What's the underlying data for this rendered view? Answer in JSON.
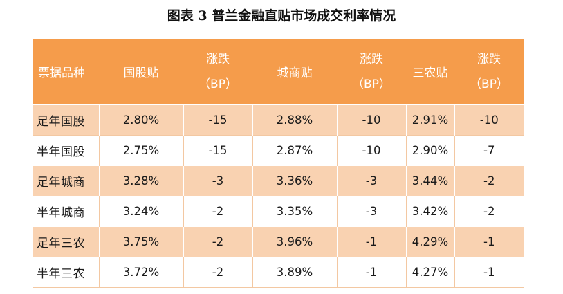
{
  "title": "图表 3  普兰金融直贴市场成交利率情况",
  "table": {
    "headers": [
      {
        "line1": "票据品种",
        "line2": ""
      },
      {
        "line1": "国股贴",
        "line2": ""
      },
      {
        "line1": "涨跌",
        "line2": "（BP）"
      },
      {
        "line1": "城商贴",
        "line2": ""
      },
      {
        "line1": "涨跌",
        "line2": "（BP）"
      },
      {
        "line1": "三农贴",
        "line2": ""
      },
      {
        "line1": "涨跌",
        "line2": "（BP）"
      }
    ],
    "rows": [
      [
        "足年国股",
        "2.80%",
        "-15",
        "2.88%",
        "-10",
        "2.91%",
        "-10"
      ],
      [
        "半年国股",
        "2.75%",
        "-15",
        "2.87%",
        "-10",
        "2.90%",
        "-7"
      ],
      [
        "足年城商",
        "3.28%",
        "-3",
        "3.36%",
        "-3",
        "3.44%",
        "-2"
      ],
      [
        "半年城商",
        "3.24%",
        "-2",
        "3.35%",
        "-3",
        "3.42%",
        "-2"
      ],
      [
        "足年三农",
        "3.75%",
        "-2",
        "3.96%",
        "-1",
        "4.29%",
        "-1"
      ],
      [
        "半年三农",
        "3.72%",
        "-2",
        "3.89%",
        "-1",
        "4.27%",
        "-1"
      ]
    ]
  },
  "colors": {
    "header_bg": "#f59c4b",
    "odd_row_bg": "#f9d2b1",
    "even_row_bg": "#ffffff",
    "header_text": "#ffffff"
  }
}
